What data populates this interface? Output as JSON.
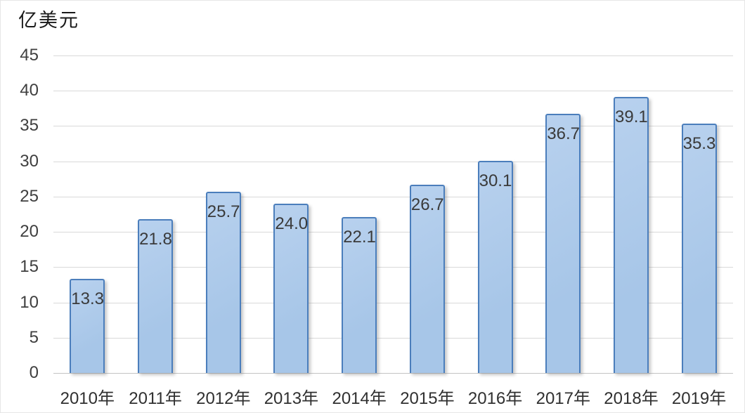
{
  "chart_data": {
    "type": "bar",
    "title": "亿美元",
    "categories": [
      "2010年",
      "2011年",
      "2012年",
      "2013年",
      "2014年",
      "2015年",
      "2016年",
      "2017年",
      "2018年",
      "2019年"
    ],
    "values": [
      13.3,
      21.8,
      25.7,
      24.0,
      22.1,
      26.7,
      30.1,
      36.7,
      39.1,
      35.3
    ],
    "labels": [
      "13.3",
      "21.8",
      "25.7",
      "24.0",
      "22.1",
      "26.7",
      "30.1",
      "36.7",
      "39.1",
      "35.3"
    ],
    "xlabel": "",
    "ylabel": "亿美元",
    "ylim": [
      0,
      45
    ],
    "yticks": [
      0,
      5,
      10,
      15,
      20,
      25,
      30,
      35,
      40,
      45
    ],
    "grid": true,
    "legend": "none",
    "data_label_position": "inside-end",
    "colors": {
      "bar_fill": "#a7c6e8",
      "bar_fill_light": "#b8d1ee",
      "bar_border": "#4b7ebc",
      "gridline": "#d9d9d9",
      "baseline": "#c3c3c3",
      "title_text": "#1a1a1a",
      "axis_text": "#3f3f3f",
      "data_label_text": "#3a3a3a",
      "background": "#ffffff"
    }
  }
}
